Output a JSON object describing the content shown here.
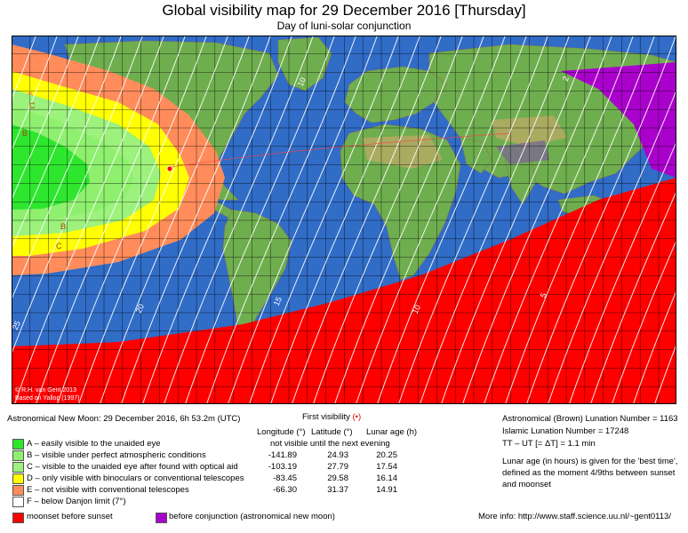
{
  "title": "Global visibility map for 29 December 2016 [Thursday]",
  "subtitle": "Day of luni-solar conjunction",
  "credits": [
    "© R.H. van Gent 2013",
    "Based on Yallop (1997)"
  ],
  "map_labels": {
    "zones": [
      "A",
      "B",
      "C",
      "B",
      "C"
    ],
    "age_contours": [
      "10",
      "15",
      "20",
      "25",
      "10",
      "5",
      "2"
    ]
  },
  "colors": {
    "zone_A": "#2ee62e",
    "zone_B": "#8ef06e",
    "zone_C": "#9cf27c",
    "zone_D": "#ffff00",
    "zone_E": "#ff8c5a",
    "moonset_before_sunset": "#ff0000",
    "before_conjunction": "#aa00cc",
    "ocean": "#2a5fbf",
    "land": "#6fae4f"
  },
  "new_moon_line": "Astronomical New Moon: 29 December 2016, 6h 53.2m (UTC)",
  "first_visibility": {
    "label": "First visibility",
    "marker": "(•)",
    "col_headers": [
      "Longitude (°)",
      "Latitude (°)",
      "Lunar age (h)"
    ],
    "not_visible_text": "not visible until the next evening"
  },
  "legend": [
    {
      "text": "A – easily visible to the unaided eye",
      "color": "#2ee62e",
      "lon": "",
      "lat": "",
      "age": ""
    },
    {
      "text": "B – visible under perfect atmospheric conditions",
      "color": "#8ef06e",
      "lon": "-141.89",
      "lat": "24.93",
      "age": "20.25"
    },
    {
      "text": "C – visible to the unaided eye after found with optical aid",
      "color": "#9cf27c",
      "lon": "-103.19",
      "lat": "27.79",
      "age": "17.54"
    },
    {
      "text": "D – only visible with binoculars or conventional telescopes",
      "color": "#ffff00",
      "lon": "-83.45",
      "lat": "29.58",
      "age": "16.14"
    },
    {
      "text": "E – not visible with conventional telescopes",
      "color": "#ff8c5a",
      "lon": "-66.30",
      "lat": "31.37",
      "age": "14.91"
    },
    {
      "text": "F – below Danjon limit (7°)",
      "color": "#ffffff",
      "lon": "",
      "lat": "",
      "age": ""
    }
  ],
  "bottom_legend": {
    "moonset": "moonset before sunset",
    "conjunction": "before conjunction (astronomical new moon)"
  },
  "right_info": {
    "brown": "Astronomical (Brown) Lunation Number = 1163",
    "islamic": "Islamic Lunation Number = 17248",
    "tt": "TT – UT [= ΔT] = 1.1 min",
    "note1": "Lunar age (in hours) is given for the 'best time',",
    "note2": "defined as the moment 4/9ths between sunset",
    "note3": "and moonset",
    "more_info": "More info: http://www.staff.science.uu.nl/~gent0113/"
  }
}
